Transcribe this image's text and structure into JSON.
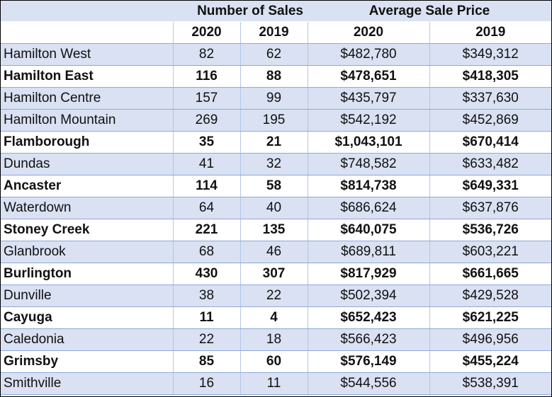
{
  "header": {
    "number_of_sales": "Number of Sales",
    "average_sale_price": "Average Sale Price",
    "years": [
      "2020",
      "2019",
      "2020",
      "2019"
    ]
  },
  "rows": [
    {
      "area": "Hamilton West",
      "sales_2020": "82",
      "sales_2019": "62",
      "price_2020": "$482,780",
      "price_2019": "$349,312",
      "shaded": true,
      "bold": false
    },
    {
      "area": "Hamilton East",
      "sales_2020": "116",
      "sales_2019": "88",
      "price_2020": "$478,651",
      "price_2019": "$418,305",
      "shaded": false,
      "bold": true
    },
    {
      "area": "Hamilton Centre",
      "sales_2020": "157",
      "sales_2019": "99",
      "price_2020": "$435,797",
      "price_2019": "$337,630",
      "shaded": true,
      "bold": false
    },
    {
      "area": "Hamilton Mountain",
      "sales_2020": "269",
      "sales_2019": "195",
      "price_2020": "$542,192",
      "price_2019": "$452,869",
      "shaded": true,
      "bold": false
    },
    {
      "area": "Flamborough",
      "sales_2020": "35",
      "sales_2019": "21",
      "price_2020": "$1,043,101",
      "price_2019": "$670,414",
      "shaded": false,
      "bold": true
    },
    {
      "area": "Dundas",
      "sales_2020": "41",
      "sales_2019": "32",
      "price_2020": "$748,582",
      "price_2019": "$633,482",
      "shaded": true,
      "bold": false
    },
    {
      "area": "Ancaster",
      "sales_2020": "114",
      "sales_2019": "58",
      "price_2020": "$814,738",
      "price_2019": "$649,331",
      "shaded": false,
      "bold": true
    },
    {
      "area": "Waterdown",
      "sales_2020": "64",
      "sales_2019": "40",
      "price_2020": "$686,624",
      "price_2019": "$637,876",
      "shaded": true,
      "bold": false
    },
    {
      "area": "Stoney Creek",
      "sales_2020": "221",
      "sales_2019": "135",
      "price_2020": "$640,075",
      "price_2019": "$536,726",
      "shaded": false,
      "bold": true
    },
    {
      "area": "Glanbrook",
      "sales_2020": "68",
      "sales_2019": "46",
      "price_2020": "$689,811",
      "price_2019": "$603,221",
      "shaded": true,
      "bold": false
    },
    {
      "area": "Burlington",
      "sales_2020": "430",
      "sales_2019": "307",
      "price_2020": "$817,929",
      "price_2019": "$661,665",
      "shaded": false,
      "bold": true
    },
    {
      "area": "Dunville",
      "sales_2020": "38",
      "sales_2019": "22",
      "price_2020": "$502,394",
      "price_2019": "$429,528",
      "shaded": true,
      "bold": false
    },
    {
      "area": "Cayuga",
      "sales_2020": "11",
      "sales_2019": "4",
      "price_2020": "$652,423",
      "price_2019": "$621,225",
      "shaded": false,
      "bold": true
    },
    {
      "area": "Caledonia",
      "sales_2020": "22",
      "sales_2019": "18",
      "price_2020": "$566,423",
      "price_2019": "$496,956",
      "shaded": true,
      "bold": false
    },
    {
      "area": "Grimsby",
      "sales_2020": "85",
      "sales_2019": "60",
      "price_2020": "$576,149",
      "price_2019": "$455,224",
      "shaded": false,
      "bold": true
    },
    {
      "area": "Smithville",
      "sales_2020": "16",
      "sales_2019": "11",
      "price_2020": "$544,556",
      "price_2019": "$538,391",
      "shaded": true,
      "bold": false
    }
  ],
  "colors": {
    "band": "#d9e1f2",
    "row_border": "#8ea9db",
    "column_border": "#b4c6e7"
  }
}
